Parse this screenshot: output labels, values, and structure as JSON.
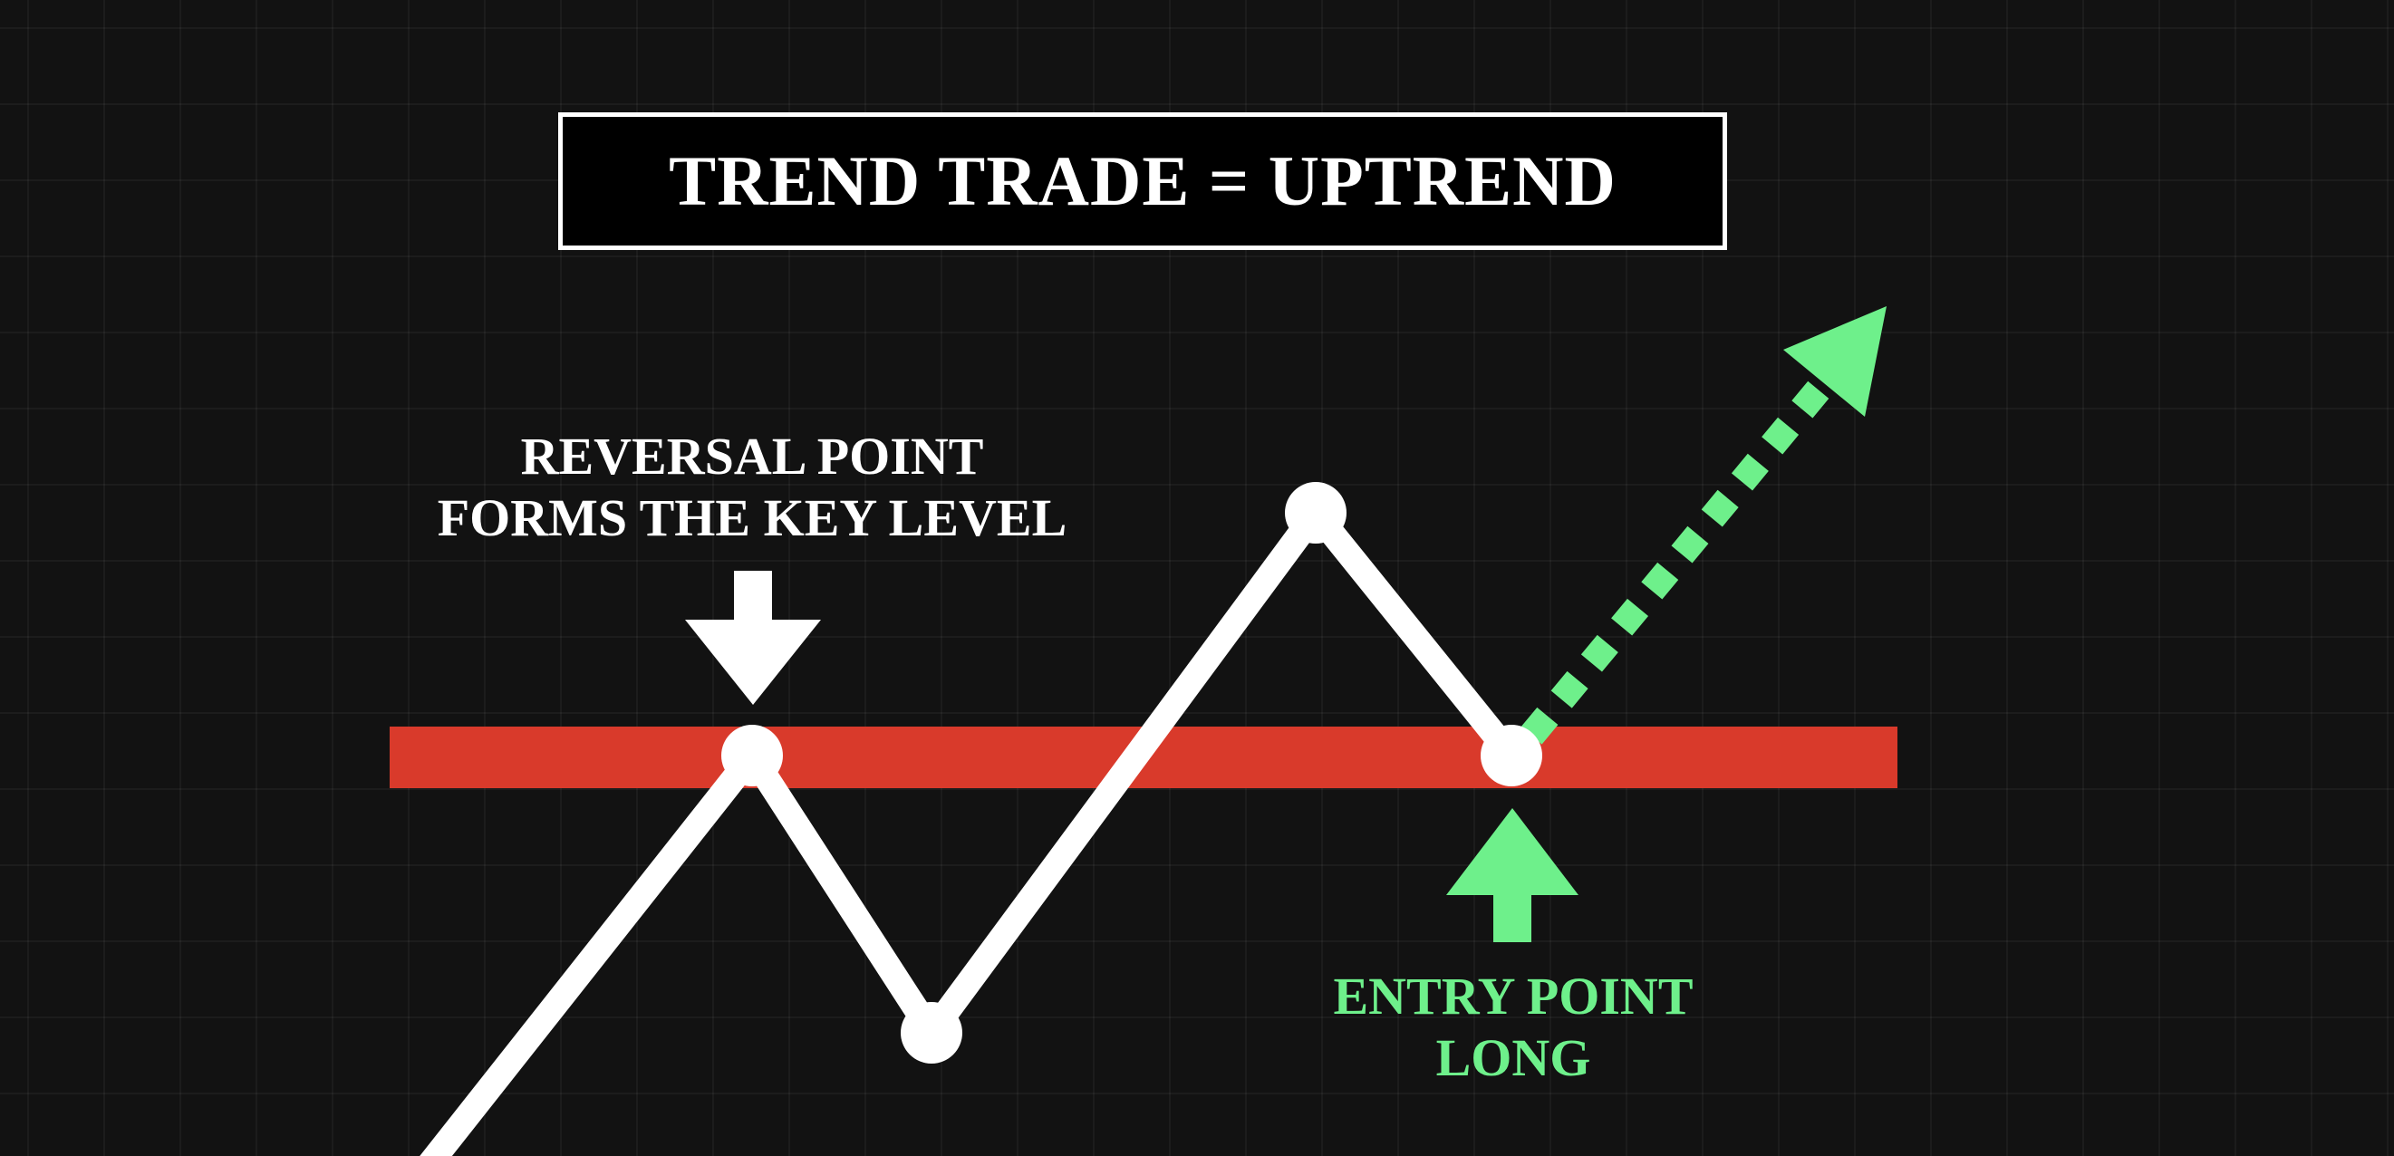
{
  "title": "TREND TRADE = UPTREND",
  "annotations": {
    "reversal": {
      "line1": "REVERSAL POINT",
      "line2": "FORMS THE KEY LEVEL"
    },
    "entry": {
      "line1": "ENTRY POINT",
      "line2": "LONG"
    }
  },
  "colors": {
    "background": "#121212",
    "key_level": "#d93a2b",
    "price_line": "#ffffff",
    "entry_accent": "#6ef08b"
  },
  "icons": {
    "reversal_marker": "arrow-down-icon",
    "entry_marker": "arrow-up-icon",
    "projection": "dotted-arrow-up-right-icon"
  }
}
